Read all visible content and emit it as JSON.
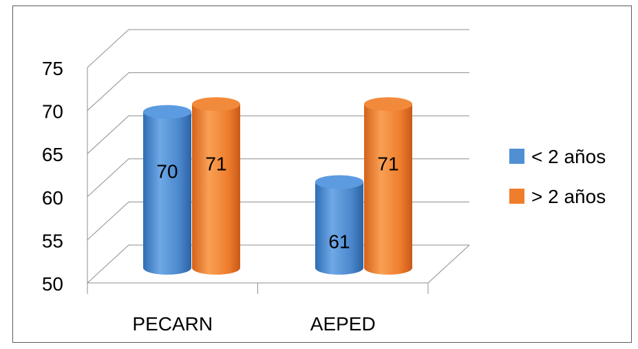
{
  "chart_data": {
    "type": "bar",
    "title": "",
    "xlabel": "",
    "ylabel": "",
    "ylim": [
      50,
      75
    ],
    "yticks": [
      "50",
      "55",
      "60",
      "65",
      "70",
      "75"
    ],
    "categories": [
      "PECARN",
      "AEPED"
    ],
    "series": [
      {
        "name": "< 2 años",
        "values": [
          70,
          61
        ],
        "color": "#4F8FD2"
      },
      {
        "name": "> 2 años",
        "values": [
          71,
          71
        ],
        "color": "#F07D2B"
      }
    ],
    "data_labels": [
      [
        "70",
        "61"
      ],
      [
        "71",
        "71"
      ]
    ],
    "grid": true,
    "legend_position": "right",
    "style": "3d-cylinder"
  }
}
